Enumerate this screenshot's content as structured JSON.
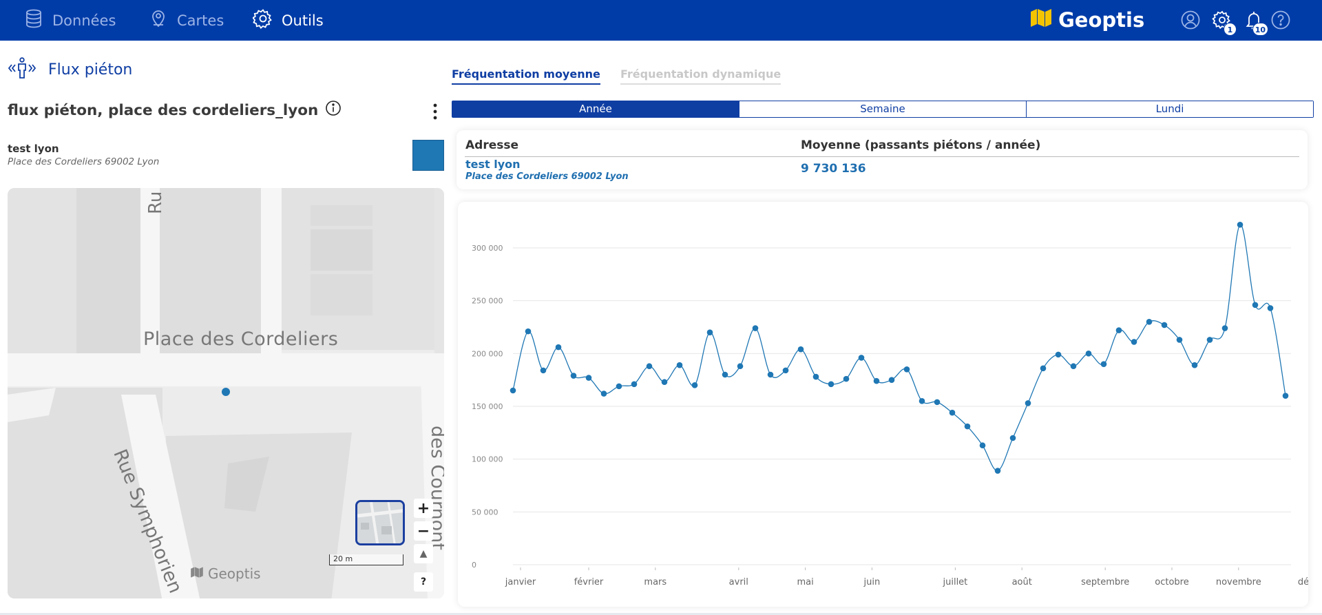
{
  "nav": {
    "items": [
      {
        "label": "Données",
        "icon": "database-icon"
      },
      {
        "label": "Cartes",
        "icon": "map-pin-icon"
      },
      {
        "label": "Outils",
        "icon": "gear-icon"
      }
    ],
    "brand": "Geoptis",
    "notifications": {
      "settings_count": "1",
      "bell_count": "10"
    }
  },
  "panel": {
    "title": "Flux piéton",
    "dataset_title": "flux piéton, place des cordeliers_lyon",
    "location": {
      "name": "test lyon",
      "address": "Place des Cordeliers 69002 Lyon"
    },
    "swatch_color": "#1f77b4"
  },
  "map": {
    "place_label": "Place des Cordeliers",
    "street_label_1": "Rue Symphorien",
    "street_label_2": "des Cournont",
    "street_label_3": "Ru",
    "scale_label": "20 m",
    "brand": "Geoptis",
    "zoom_in": "+",
    "zoom_out": "−",
    "north": "▲",
    "help": "?"
  },
  "tabs": [
    "Fréquentation moyenne",
    "Fréquentation dynamique"
  ],
  "periods": [
    "Année",
    "Semaine",
    "Lundi"
  ],
  "table": {
    "col_address": "Adresse",
    "col_mean": "Moyenne (passants piétons / année)",
    "row_name": "test lyon",
    "row_address": "Place des Cordeliers 69002 Lyon",
    "row_value": "9 730 136"
  },
  "chart_data": {
    "type": "line",
    "ylim": [
      0,
      300000
    ],
    "yticks": [
      0,
      50000,
      100000,
      150000,
      200000,
      250000,
      300000
    ],
    "ytick_labels": [
      "0",
      "50 000",
      "100 000",
      "150 000",
      "200 000",
      "250 000",
      "300 000"
    ],
    "months": [
      "janvier",
      "février",
      "mars",
      "avril",
      "mai",
      "juin",
      "juillet",
      "août",
      "septembre",
      "octobre",
      "novembre",
      "décembre"
    ],
    "series_color": "#1f77b4",
    "values": [
      165000,
      221000,
      184000,
      206000,
      179000,
      177000,
      162000,
      169000,
      171000,
      188000,
      173000,
      189000,
      170000,
      220000,
      180000,
      188000,
      224000,
      180000,
      184000,
      204000,
      178000,
      171000,
      176000,
      196000,
      174000,
      175000,
      185000,
      155000,
      154000,
      144000,
      131000,
      113000,
      89000,
      120000,
      153000,
      186000,
      199000,
      188000,
      200000,
      190000,
      222000,
      211000,
      230000,
      227000,
      213000,
      189000,
      213000,
      224000,
      322000,
      246000,
      243000,
      160000
    ]
  }
}
